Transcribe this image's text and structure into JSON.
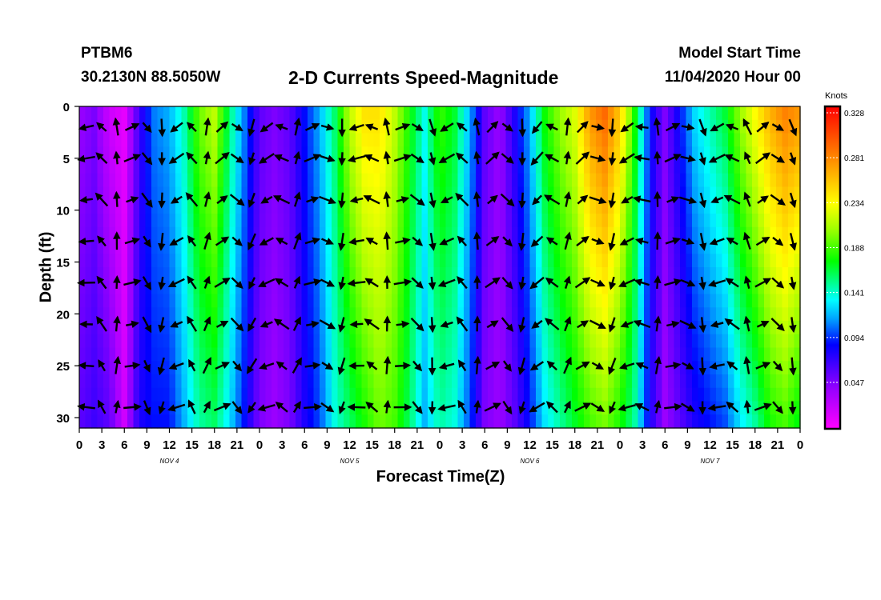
{
  "header": {
    "station": "PTBM6",
    "coords": "30.2130N 88.5050W",
    "title": "2-D Currents Speed-Magnitude",
    "model_label": "Model Start Time",
    "model_start": "11/04/2020 Hour 00"
  },
  "chart_data": {
    "type": "heatmap",
    "title": "2-D Currents Speed-Magnitude",
    "xlabel": "Forecast Time(Z)",
    "ylabel": "Depth (ft)",
    "x_ticks": [
      "0",
      "3",
      "6",
      "9",
      "12",
      "15",
      "18",
      "21",
      "0",
      "3",
      "6",
      "9",
      "12",
      "15",
      "18",
      "21",
      "0",
      "3",
      "6",
      "9",
      "12",
      "15",
      "18",
      "21",
      "0",
      "3",
      "6",
      "9",
      "12",
      "15",
      "18",
      "21",
      "0"
    ],
    "x_range_hours": [
      0,
      96
    ],
    "day_labels": [
      {
        "label": "NOV  4",
        "hour": 12
      },
      {
        "label": "NOV  5",
        "hour": 36
      },
      {
        "label": "NOV  6",
        "hour": 60
      },
      {
        "label": "NOV  7",
        "hour": 84
      }
    ],
    "y_ticks": [
      0,
      5,
      10,
      15,
      20,
      25,
      30
    ],
    "ylim": [
      0,
      31
    ],
    "y_inverted": true,
    "colorbar": {
      "units": "Knots",
      "ticks": [
        "0.328",
        "0.281",
        "0.234",
        "0.188",
        "0.141",
        "0.094",
        "0.047"
      ],
      "range": [
        0,
        0.34
      ]
    },
    "speed_profile": {
      "hours": [
        0,
        2,
        4,
        6,
        8,
        10,
        12,
        14,
        16,
        18,
        20,
        22,
        24,
        26,
        28,
        30,
        32,
        34,
        36,
        38,
        40,
        42,
        44,
        46,
        48,
        50,
        52,
        54,
        56,
        58,
        60,
        62,
        64,
        66,
        68,
        70,
        72,
        74,
        76,
        78,
        80,
        82,
        84,
        86,
        88,
        90,
        92,
        94,
        96
      ],
      "surface_knots": [
        0.04,
        0.05,
        0.02,
        0.01,
        0.07,
        0.11,
        0.12,
        0.15,
        0.2,
        0.22,
        0.16,
        0.11,
        0.06,
        0.05,
        0.06,
        0.09,
        0.12,
        0.16,
        0.22,
        0.25,
        0.25,
        0.22,
        0.18,
        0.14,
        0.19,
        0.17,
        0.12,
        0.06,
        0.04,
        0.08,
        0.12,
        0.18,
        0.21,
        0.23,
        0.28,
        0.3,
        0.26,
        0.18,
        0.09,
        0.05,
        0.09,
        0.13,
        0.15,
        0.17,
        0.21,
        0.24,
        0.27,
        0.29,
        0.28
      ],
      "bottom_knots": [
        0.06,
        0.07,
        0.06,
        0.02,
        0.08,
        0.09,
        0.09,
        0.12,
        0.15,
        0.16,
        0.13,
        0.09,
        0.05,
        0.04,
        0.05,
        0.08,
        0.1,
        0.14,
        0.16,
        0.18,
        0.2,
        0.19,
        0.16,
        0.12,
        0.15,
        0.14,
        0.1,
        0.05,
        0.04,
        0.06,
        0.09,
        0.13,
        0.15,
        0.17,
        0.19,
        0.2,
        0.18,
        0.15,
        0.08,
        0.04,
        0.06,
        0.08,
        0.09,
        0.1,
        0.13,
        0.15,
        0.18,
        0.19,
        0.17
      ]
    },
    "vector_grid": {
      "hours_step": 2,
      "depths_ft": [
        2,
        5,
        9,
        13,
        17,
        21,
        25,
        29
      ]
    }
  }
}
